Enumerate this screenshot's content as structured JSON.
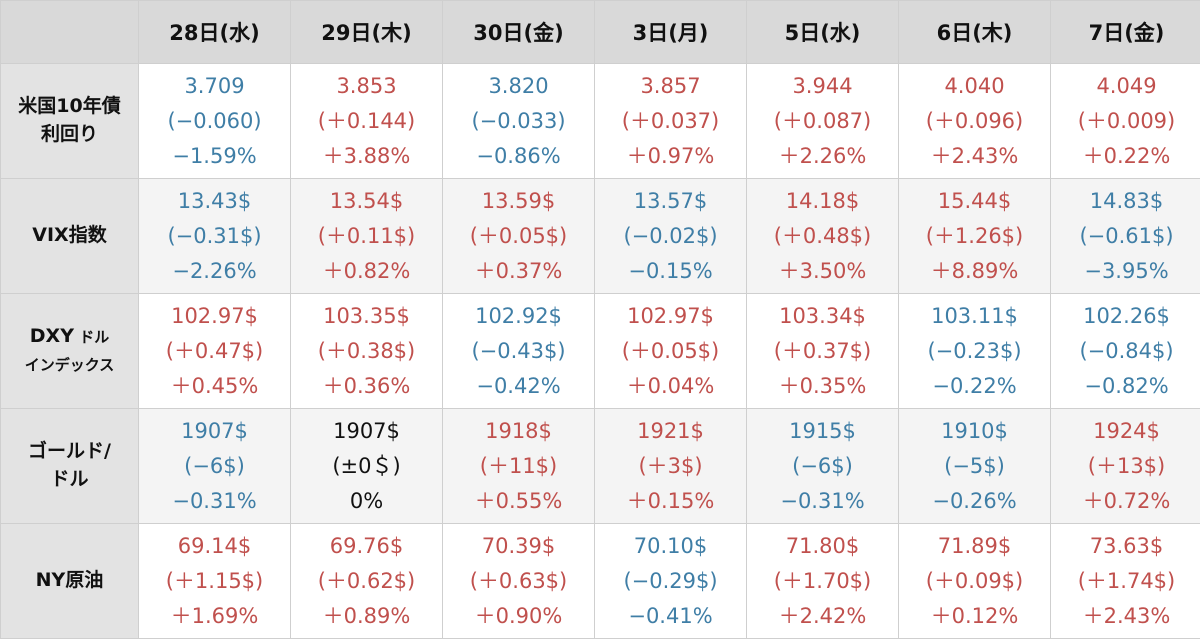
{
  "colors": {
    "up": "#c0504d",
    "down": "#3f7ea6",
    "flat": "#111111"
  },
  "headers": [
    "28日(水)",
    "29日(木)",
    "30日(金)",
    "3日(月)",
    "5日(水)",
    "6日(木)",
    "7日(金)"
  ],
  "rows": [
    {
      "label1": "米国10年債",
      "label2": "利回り",
      "cells": [
        {
          "value": "3.709",
          "change": "(−0.060)",
          "pct": "−1.59%",
          "dir": "down"
        },
        {
          "value": "3.853",
          "change": "(＋0.144)",
          "pct": "＋3.88%",
          "dir": "up"
        },
        {
          "value": "3.820",
          "change": "(−0.033)",
          "pct": "−0.86%",
          "dir": "down"
        },
        {
          "value": "3.857",
          "change": "(＋0.037)",
          "pct": "＋0.97%",
          "dir": "up"
        },
        {
          "value": "3.944",
          "change": "(＋0.087)",
          "pct": "＋2.26%",
          "dir": "up"
        },
        {
          "value": "4.040",
          "change": "(＋0.096)",
          "pct": "＋2.43%",
          "dir": "up"
        },
        {
          "value": "4.049",
          "change": "(＋0.009)",
          "pct": "＋0.22%",
          "dir": "up"
        }
      ]
    },
    {
      "label1": "VIX指数",
      "label2": "",
      "cells": [
        {
          "value": "13.43$",
          "change": "(−0.31$)",
          "pct": "−2.26%",
          "dir": "down"
        },
        {
          "value": "13.54$",
          "change": "(＋0.11$)",
          "pct": "＋0.82%",
          "dir": "up"
        },
        {
          "value": "13.59$",
          "change": "(＋0.05$)",
          "pct": "＋0.37%",
          "dir": "up"
        },
        {
          "value": "13.57$",
          "change": "(−0.02$)",
          "pct": "−0.15%",
          "dir": "down"
        },
        {
          "value": "14.18$",
          "change": "(＋0.48$)",
          "pct": "＋3.50%",
          "dir": "up"
        },
        {
          "value": "15.44$",
          "change": "(＋1.26$)",
          "pct": "＋8.89%",
          "dir": "up"
        },
        {
          "value": "14.83$",
          "change": "(−0.61$)",
          "pct": "−3.95%",
          "dir": "down"
        }
      ]
    },
    {
      "label1": "DXY",
      "label1_small": " ドル",
      "label2": "インデックス",
      "cells": [
        {
          "value": "102.97$",
          "change": "(＋0.47$)",
          "pct": "＋0.45%",
          "dir": "up"
        },
        {
          "value": "103.35$",
          "change": "(＋0.38$)",
          "pct": "＋0.36%",
          "dir": "up"
        },
        {
          "value": "102.92$",
          "change": "(−0.43$)",
          "pct": "−0.42%",
          "dir": "down"
        },
        {
          "value": "102.97$",
          "change": "(＋0.05$)",
          "pct": "＋0.04%",
          "dir": "up"
        },
        {
          "value": "103.34$",
          "change": "(＋0.37$)",
          "pct": "＋0.35%",
          "dir": "up"
        },
        {
          "value": "103.11$",
          "change": "(−0.23$)",
          "pct": "−0.22%",
          "dir": "down"
        },
        {
          "value": "102.26$",
          "change": "(−0.84$)",
          "pct": "−0.82%",
          "dir": "down"
        }
      ]
    },
    {
      "label1": "ゴールド/",
      "label2": "ドル",
      "cells": [
        {
          "value": "1907$",
          "change": "(−6$)",
          "pct": "−0.31%",
          "dir": "down"
        },
        {
          "value": "1907$",
          "change": "(±0＄)",
          "pct": "0%",
          "dir": "flat"
        },
        {
          "value": "1918$",
          "change": "(＋11$)",
          "pct": "＋0.55%",
          "dir": "up"
        },
        {
          "value": "1921$",
          "change": "(＋3$)",
          "pct": "＋0.15%",
          "dir": "up"
        },
        {
          "value": "1915$",
          "change": "(−6$)",
          "pct": "−0.31%",
          "dir": "down"
        },
        {
          "value": "1910$",
          "change": "(−5$)",
          "pct": "−0.26%",
          "dir": "down"
        },
        {
          "value": "1924$",
          "change": "(＋13$)",
          "pct": "＋0.72%",
          "dir": "up"
        }
      ]
    },
    {
      "label1": "NY原油",
      "label2": "",
      "cells": [
        {
          "value": "69.14$",
          "change": "(＋1.15$)",
          "pct": "＋1.69%",
          "dir": "up"
        },
        {
          "value": "69.76$",
          "change": "(＋0.62$)",
          "pct": "＋0.89%",
          "dir": "up"
        },
        {
          "value": "70.39$",
          "change": "(＋0.63$)",
          "pct": "＋0.90%",
          "dir": "up"
        },
        {
          "value": "70.10$",
          "change": "(−0.29$)",
          "pct": "−0.41%",
          "dir": "down"
        },
        {
          "value": "71.80$",
          "change": "(＋1.70$)",
          "pct": "＋2.42%",
          "dir": "up"
        },
        {
          "value": "71.89$",
          "change": "(＋0.09$)",
          "pct": "＋0.12%",
          "dir": "up"
        },
        {
          "value": "73.63$",
          "change": "(＋1.74$)",
          "pct": "＋2.43%",
          "dir": "up"
        }
      ]
    }
  ]
}
